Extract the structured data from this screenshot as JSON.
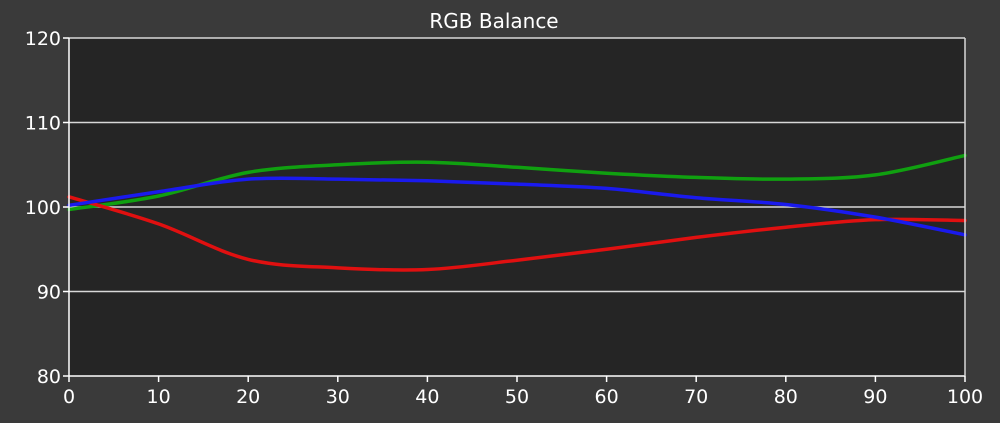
{
  "chart_data": {
    "type": "line",
    "title": "RGB Balance",
    "xlabel": "",
    "ylabel": "",
    "xlim": [
      0,
      100
    ],
    "ylim": [
      80,
      120
    ],
    "x_ticks": [
      "0",
      "10",
      "20",
      "30",
      "40",
      "50",
      "60",
      "70",
      "80",
      "90",
      "100"
    ],
    "y_ticks": [
      "80",
      "90",
      "100",
      "110",
      "120"
    ],
    "grid": "horizontal",
    "x": [
      0,
      10,
      20,
      30,
      40,
      50,
      60,
      70,
      80,
      90,
      100
    ],
    "series": [
      {
        "color": "#10a010",
        "values": [
          99.7,
          101.3,
          104.1,
          105.0,
          105.3,
          104.7,
          104.0,
          103.5,
          103.3,
          103.8,
          106.1
        ]
      },
      {
        "color": "#e01010",
        "values": [
          101.2,
          98.0,
          93.8,
          92.8,
          92.6,
          93.7,
          95.0,
          96.4,
          97.6,
          98.5,
          98.4
        ]
      },
      {
        "color": "#1a1aee",
        "values": [
          100.2,
          101.8,
          103.3,
          103.3,
          103.1,
          102.7,
          102.2,
          101.1,
          100.3,
          98.8,
          96.7
        ]
      }
    ],
    "colors": {
      "page_background": "#3a3a3a",
      "plot_background": "#252525",
      "gridline": "#d8d8d8",
      "axis": "#ffffff",
      "text": "#ffffff"
    }
  }
}
